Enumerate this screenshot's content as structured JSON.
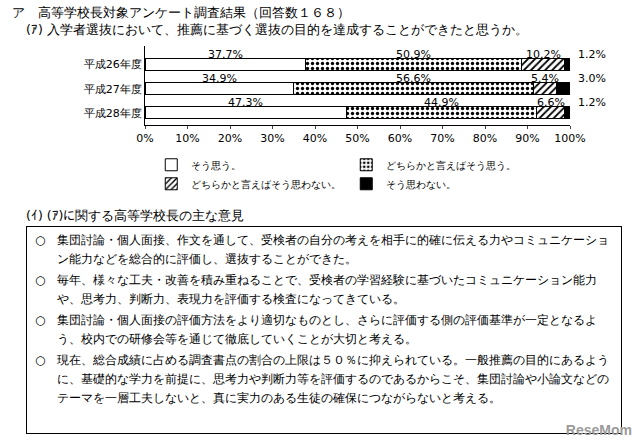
{
  "heading": "ア　高等学校長対象アンケート調査結果（回答数１６８）",
  "question": "(ｱ) 入学者選抜において、推薦に基づく選抜の目的を達成することができたと思うか。",
  "chart_data": {
    "type": "bar",
    "orientation": "horizontal",
    "stacked": true,
    "data_labels": true,
    "grid": false,
    "legend": "bottom",
    "categories": [
      "平成26年度",
      "平成27年度",
      "平成28年度"
    ],
    "xlim": [
      0,
      100
    ],
    "xticks": [
      {
        "value": 0,
        "label": "0%"
      },
      {
        "value": 10,
        "label": "10%"
      },
      {
        "value": 20,
        "label": "20%"
      },
      {
        "value": 30,
        "label": "30%"
      },
      {
        "value": 40,
        "label": "40%"
      },
      {
        "value": 50,
        "label": "50%"
      },
      {
        "value": 60,
        "label": "60%"
      },
      {
        "value": 70,
        "label": "70%"
      },
      {
        "value": 80,
        "label": "80%"
      },
      {
        "value": 90,
        "label": "90%"
      },
      {
        "value": 100,
        "label": "100%"
      }
    ],
    "series": [
      {
        "name": "そう思う。",
        "color": "#ffffff",
        "marker": "none",
        "values": [
          37.7,
          34.9,
          47.3
        ],
        "value_labels": [
          "37.7%",
          "34.9%",
          "47.3%"
        ]
      },
      {
        "name": "どちらかと言えばそう思う。",
        "color": "#ffffff",
        "marker": "dots",
        "values": [
          50.9,
          56.6,
          44.9
        ],
        "value_labels": [
          "50.9%",
          "56.6%",
          "44.9%"
        ]
      },
      {
        "name": "どちらかと言えばそう思わない。",
        "color": "#ffffff",
        "marker": "hatch",
        "values": [
          10.2,
          5.4,
          6.6
        ],
        "value_labels": [
          "10.2%",
          "5.4%",
          "6.6%"
        ]
      },
      {
        "name": "そう思わない。",
        "color": "#000000",
        "marker": "none",
        "values": [
          1.2,
          3.0,
          1.2
        ],
        "value_labels": [
          "1.2%",
          "3.0%",
          "1.2%"
        ]
      }
    ]
  },
  "opinions": {
    "heading": "(ｲ) (ｱ)に関する高等学校長の主な意見",
    "bullet": "○",
    "items": [
      "集団討論・個人面接、作文を通して、受検者の自分の考えを相手に的確に伝える力やコミュニケーション能力などを総合的に評価し、選抜することができた。",
      "毎年、様々な工夫・改善を積み重ねることで、受検者の学習経験に基づいたコミュニケーション能力や、思考力、判断力、表現力を評価する検査になってきている。",
      "集団討論・個人面接の評価方法をより適切なものとし、さらに評価する側の評価基準が一定となるよう、校内での研修会等を通じて徹底していくことが大切と考える。",
      "現在、総合成績に占める調査書点の割合の上限は５０％に抑えられている。一般推薦の目的にあるように、基礎的な学力を前提に、思考力や判断力等を評価するのであるからこそ、集団討論や小論文などのテーマを一層工夫しないと、真に実力のある生徒の確保につながらないと考える。"
    ]
  },
  "watermark": "ReseMom"
}
